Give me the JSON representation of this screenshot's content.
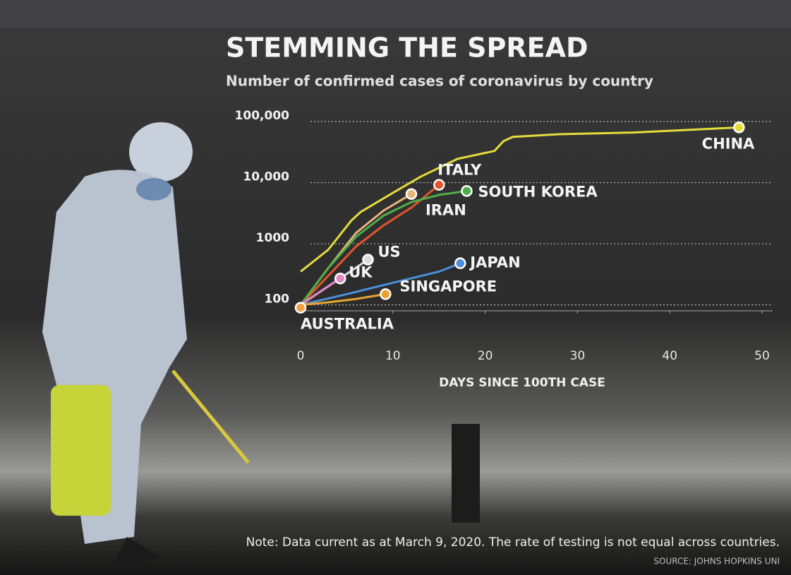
{
  "chart_data": {
    "type": "line",
    "title": "STEMMING THE SPREAD",
    "subtitle": "Number of confirmed cases of coronavirus by country",
    "x_label": "DAYS SINCE 100TH CASE",
    "note": "Note: Data current as at March 9, 2020. The rate of testing is not equal across countries.",
    "source": "SOURCE: JOHNS HOPKINS UNI",
    "log_y": true,
    "grid": true,
    "xlim": [
      0,
      50
    ],
    "xticks": [
      0,
      10,
      20,
      30,
      40,
      50
    ],
    "ylim": [
      80,
      100000
    ],
    "yticks": [
      100,
      1000,
      {
        "value": 10000,
        "label": "10,000"
      },
      {
        "value": 100000,
        "label": "100,000"
      }
    ],
    "series": [
      {
        "name": "CHINA",
        "color": "#e6dc3c",
        "x": [
          0,
          3,
          5.5,
          6.5,
          10,
          13,
          17,
          21,
          22,
          23,
          28,
          36,
          47.5
        ],
        "values": [
          350,
          800,
          2400,
          3300,
          6800,
          12500,
          24500,
          33000,
          48000,
          56000,
          62000,
          66000,
          80000
        ]
      },
      {
        "name": "ITALY",
        "color": "#e2562c",
        "x": [
          0,
          3,
          6,
          9,
          12,
          15
        ],
        "values": [
          100,
          300,
          900,
          2000,
          3900,
          9200
        ]
      },
      {
        "name": "IRAN",
        "color": "#e8b47a",
        "x": [
          0,
          3,
          6,
          9,
          12
        ],
        "values": [
          100,
          400,
          1500,
          3500,
          6500
        ]
      },
      {
        "name": "SOUTH KOREA",
        "color": "#4fae4a",
        "x": [
          0,
          3,
          6,
          9,
          12,
          15,
          18
        ],
        "values": [
          100,
          400,
          1300,
          2900,
          4800,
          6300,
          7300
        ]
      },
      {
        "name": "JAPAN",
        "color": "#4a90d8",
        "x": [
          0,
          5,
          10,
          15,
          17.3
        ],
        "values": [
          100,
          150,
          230,
          350,
          480
        ]
      },
      {
        "name": "US",
        "color": "#dddddd",
        "x": [
          0,
          7.3
        ],
        "values": [
          100,
          550
        ]
      },
      {
        "name": "UK",
        "color": "#e486c4",
        "x": [
          0,
          2,
          4.3
        ],
        "values": [
          100,
          160,
          270
        ]
      },
      {
        "name": "SINGAPORE",
        "color": "#e8a432",
        "x": [
          0,
          3,
          6,
          9.2
        ],
        "values": [
          100,
          110,
          125,
          150
        ]
      },
      {
        "name": "AUSTRALIA",
        "color": "#f0a040",
        "x": [
          0
        ],
        "values": [
          90
        ]
      }
    ]
  }
}
